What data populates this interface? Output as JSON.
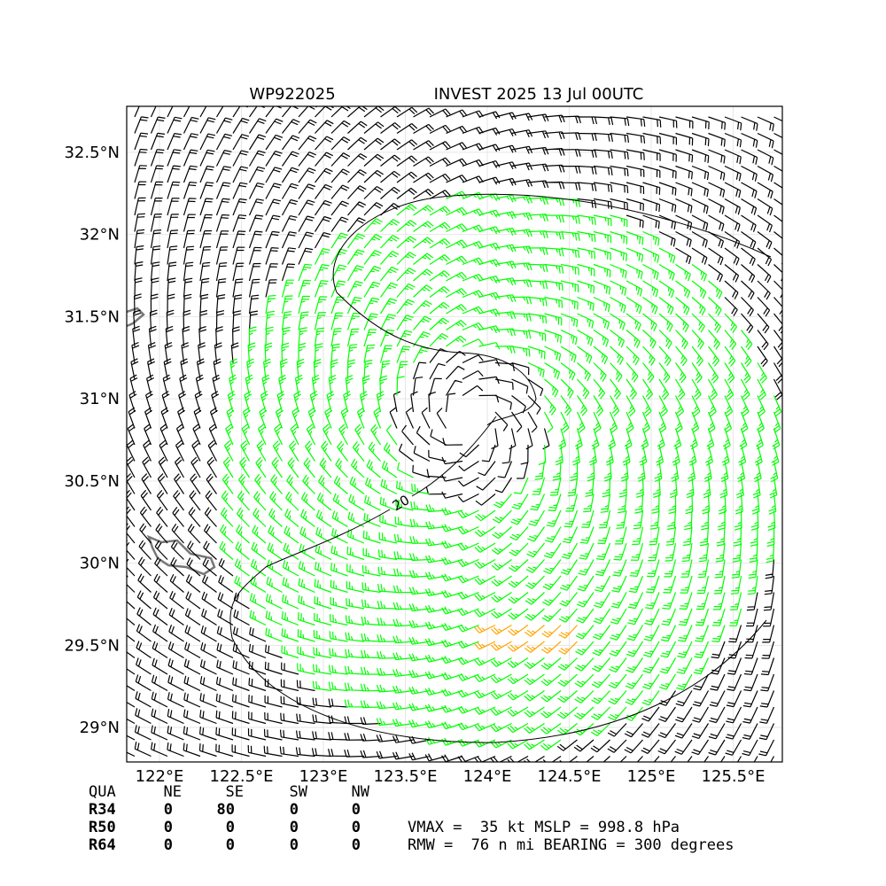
{
  "title_left": "WP922025",
  "title_right": "INVEST 2025 13 Jul 00UTC",
  "map": {
    "xlim": [
      121.8,
      125.8
    ],
    "ylim": [
      28.79,
      32.78
    ],
    "xticks": [
      {
        "value": 122,
        "label": "122°E"
      },
      {
        "value": 122.5,
        "label": "122.5°E"
      },
      {
        "value": 123,
        "label": "123°E"
      },
      {
        "value": 123.5,
        "label": "123.5°E"
      },
      {
        "value": 124,
        "label": "124°E"
      },
      {
        "value": 124.5,
        "label": "124.5°E"
      },
      {
        "value": 125,
        "label": "125°E"
      },
      {
        "value": 125.5,
        "label": "125.5°E"
      }
    ],
    "yticks": [
      {
        "value": 29,
        "label": "29°N"
      },
      {
        "value": 29.5,
        "label": "29.5°N"
      },
      {
        "value": 30,
        "label": "30°N"
      },
      {
        "value": 30.5,
        "label": "30.5°N"
      },
      {
        "value": 31,
        "label": "31°N"
      },
      {
        "value": 31.5,
        "label": "31.5°N"
      },
      {
        "value": 32,
        "label": "32°N"
      },
      {
        "value": 32.5,
        "label": "32.5°N"
      }
    ],
    "contour_label": "20",
    "grid": true
  },
  "table": {
    "header": [
      "QUA",
      "NE",
      "SE",
      "SW",
      "NW"
    ],
    "rows": [
      [
        "R34",
        0,
        80,
        0,
        0
      ],
      [
        "R50",
        0,
        0,
        0,
        0
      ],
      [
        "R64",
        0,
        0,
        0,
        0
      ]
    ]
  },
  "stats": [
    "VMAX =  35 kt MSLP = 998.8 hPa",
    "RMW =  76 n mi BEARING = 300 degrees"
  ]
}
